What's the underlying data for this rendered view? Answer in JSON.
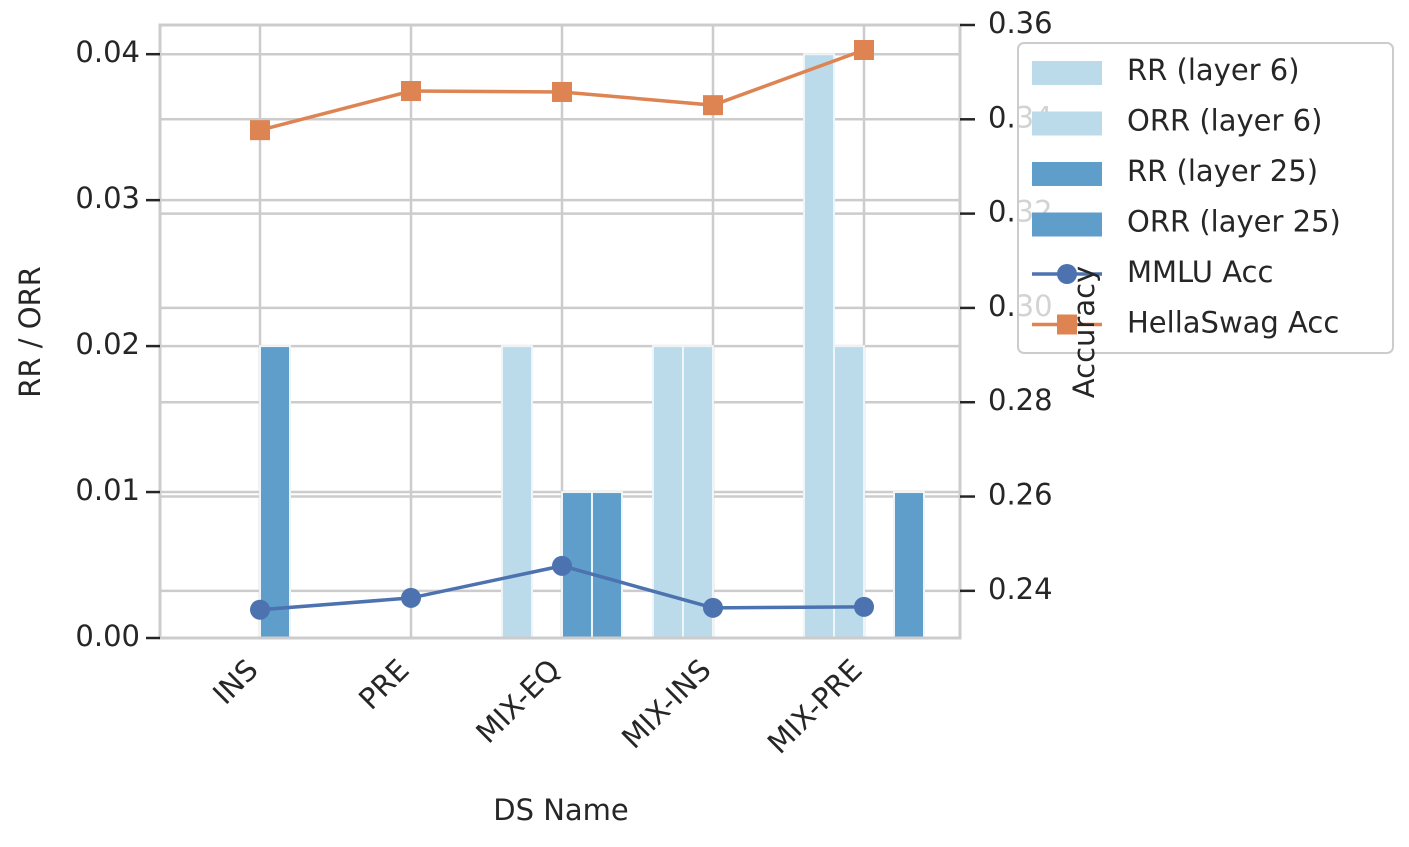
{
  "chart_data": {
    "type": "bar",
    "xlabel": "DS Name",
    "ylabel": "RR / ORR",
    "y2label": "Accuracy",
    "categories": [
      "INS",
      "PRE",
      "MIX-EQ",
      "MIX-INS",
      "MIX-PRE"
    ],
    "ylim": [
      0,
      0.042
    ],
    "yticks": [
      {
        "value": 0,
        "label": "0.00"
      },
      {
        "value": 0.01,
        "label": "0.01"
      },
      {
        "value": 0.02,
        "label": "0.02"
      },
      {
        "value": 0.03,
        "label": "0.03"
      },
      {
        "value": 0.04,
        "label": "0.04"
      }
    ],
    "y2lim": [
      0.23,
      0.36
    ],
    "y2ticks": [
      0.24,
      0.26,
      0.28,
      {
        "value": 0.3,
        "label": "0.30"
      },
      0.32,
      0.34,
      0.36
    ],
    "grid": true,
    "legend": "upper right outside",
    "series": [
      {
        "name": "RR (layer 6)",
        "type": "bar",
        "color": "#bcdbea",
        "values": [
          0,
          0,
          0.02,
          0.02,
          0.04
        ]
      },
      {
        "name": "ORR (layer 6)",
        "type": "bar",
        "color": "#bcdbea",
        "values": [
          0,
          0,
          0,
          0.02,
          0.02
        ]
      },
      {
        "name": "RR (layer 25)",
        "type": "bar",
        "color": "#5f9ecb",
        "values": [
          0.02,
          0,
          0.01,
          0,
          0
        ]
      },
      {
        "name": "ORR (layer 25)",
        "type": "bar",
        "color": "#5f9ecb",
        "values": [
          0,
          0,
          0.01,
          0,
          0.01
        ]
      },
      {
        "name": "MMLU Acc",
        "type": "line",
        "marker": "circle",
        "axis": "y2",
        "color": "#4c72b0",
        "values": [
          0.236,
          0.2385,
          0.2453,
          0.2364,
          0.2366
        ]
      },
      {
        "name": "HellaSwag Acc",
        "type": "line",
        "marker": "square",
        "axis": "y2",
        "color": "#dd8452",
        "values": [
          0.3377,
          0.346,
          0.3458,
          0.343,
          0.3547
        ]
      }
    ]
  }
}
